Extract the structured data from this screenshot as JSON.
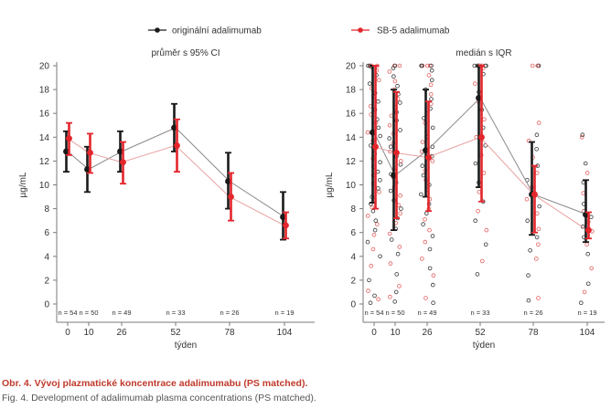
{
  "legend": {
    "position": "top",
    "items": [
      {
        "label": "originální adalimumab",
        "color": "#1a1a1a"
      },
      {
        "label": "SB-5 adalimumab",
        "color": "#e3262c"
      }
    ]
  },
  "caption": {
    "title": "Obr. 4. Vývoj plazmatické koncentrace adalimumabu (PS matched).",
    "subtitle": "Fig. 4. Development of adalimumab plasma concentrations (PS matched)."
  },
  "chart_data": [
    {
      "type": "line",
      "title": "průměr s 95% CI",
      "xlabel": "týden",
      "ylabel": "µg/mL",
      "ylim": [
        0,
        20
      ],
      "yticks": [
        0,
        2,
        4,
        6,
        8,
        10,
        12,
        14,
        16,
        18,
        20
      ],
      "categories": [
        "0",
        "10",
        "26",
        "52",
        "78",
        "104"
      ],
      "x": [
        0,
        10,
        26,
        52,
        78,
        104
      ],
      "n_labels": [
        "n = 54",
        "n = 50",
        "n = 49",
        "n = 33",
        "n = 26",
        "n = 19"
      ],
      "series": [
        {
          "name": "originální adalimumab",
          "color": "#1a1a1a",
          "values": [
            12.8,
            11.3,
            12.8,
            14.8,
            10.3,
            7.3
          ],
          "lower": [
            11.1,
            9.4,
            11.1,
            12.8,
            8.0,
            5.4
          ],
          "upper": [
            14.5,
            13.2,
            14.5,
            16.8,
            12.7,
            9.4
          ]
        },
        {
          "name": "SB-5 adalimumab",
          "color": "#e3262c",
          "values": [
            13.9,
            12.7,
            11.9,
            13.3,
            9.0,
            6.6
          ],
          "lower": [
            12.5,
            11.0,
            10.1,
            11.1,
            7.0,
            5.5
          ],
          "upper": [
            15.2,
            14.3,
            13.6,
            15.5,
            11.0,
            7.7
          ]
        }
      ]
    },
    {
      "type": "scatter",
      "title": "medián s IQR",
      "xlabel": "týden",
      "ylabel": "µg/mL",
      "ylim": [
        0,
        20
      ],
      "yticks": [
        0,
        2,
        4,
        6,
        8,
        10,
        12,
        14,
        16,
        18,
        20
      ],
      "categories": [
        "0",
        "10",
        "26",
        "52",
        "78",
        "104"
      ],
      "x": [
        0,
        10,
        26,
        52,
        78,
        104
      ],
      "n_labels": [
        "n = 54",
        "n = 50",
        "n = 49",
        "n = 33",
        "n = 26",
        "n = 19"
      ],
      "series": [
        {
          "name": "originální adalimumab",
          "color": "#1a1a1a",
          "values": [
            14.4,
            10.8,
            12.9,
            17.3,
            9.2,
            7.5
          ],
          "lower": [
            8.5,
            6.2,
            9.0,
            9.8,
            5.8,
            5.2
          ],
          "upper": [
            20.0,
            18.0,
            18.0,
            20.0,
            13.6,
            10.4
          ]
        },
        {
          "name": "SB-5 adalimumab",
          "color": "#e3262c",
          "values": [
            13.2,
            12.7,
            12.3,
            14.0,
            9.2,
            6.2
          ],
          "lower": [
            8.0,
            7.2,
            7.8,
            8.6,
            6.0,
            5.5
          ],
          "upper": [
            20.0,
            17.8,
            17.0,
            20.0,
            11.6,
            7.7
          ]
        }
      ],
      "points": {
        "0": [
          0.1,
          0.4,
          0.7,
          1.1,
          2.0,
          3.2,
          4.0,
          4.6,
          5.2,
          5.8,
          6.2,
          6.7,
          7.0,
          7.4,
          7.8,
          8.1,
          8.4,
          8.7,
          9.0,
          9.4,
          9.7,
          10.1,
          10.4,
          10.8,
          11.1,
          11.5,
          11.9,
          12.2,
          12.6,
          13.0,
          13.3,
          13.7,
          14.1,
          14.4,
          14.8,
          15.2,
          15.5,
          15.9,
          16.3,
          16.6,
          17.0,
          17.4,
          17.7,
          18.1,
          18.5,
          18.8,
          19.2,
          19.6,
          19.9,
          20.0,
          20.0,
          20.0,
          20.0,
          20.0
        ],
        "10": [
          0.2,
          0.6,
          1.0,
          1.5,
          2.5,
          3.4,
          4.2,
          4.8,
          5.4,
          5.9,
          6.3,
          6.8,
          7.2,
          7.6,
          8.0,
          8.3,
          8.7,
          9.1,
          9.5,
          9.8,
          10.2,
          10.6,
          10.9,
          11.3,
          11.7,
          12.0,
          12.4,
          12.8,
          13.2,
          13.5,
          13.9,
          14.3,
          14.6,
          15.0,
          15.4,
          15.8,
          16.1,
          16.5,
          16.9,
          17.2,
          17.6,
          18.0,
          18.3,
          18.7,
          19.1,
          19.5,
          19.8,
          20.0,
          20.0,
          20.0
        ],
        "26": [
          0.1,
          0.5,
          1.6,
          2.4,
          3.0,
          3.8,
          4.6,
          5.2,
          5.7,
          6.2,
          6.7,
          7.1,
          7.6,
          8.0,
          8.4,
          8.8,
          9.2,
          9.6,
          10.0,
          10.4,
          10.8,
          11.2,
          11.6,
          12.0,
          12.4,
          12.8,
          13.2,
          13.6,
          14.0,
          14.4,
          14.8,
          15.2,
          15.6,
          16.0,
          16.4,
          16.8,
          17.2,
          17.6,
          18.0,
          18.4,
          18.8,
          19.2,
          19.6,
          20.0,
          20.0,
          20.0,
          20.0,
          20.0,
          20.0
        ],
        "52": [
          2.5,
          3.6,
          5.0,
          6.2,
          7.0,
          7.8,
          8.6,
          9.4,
          10.2,
          11.0,
          11.8,
          12.5,
          13.3,
          14.0,
          14.8,
          15.5,
          16.3,
          17.0,
          17.8,
          18.5,
          19.3,
          19.8,
          20.0,
          20.0,
          20.0,
          20.0,
          20.0,
          20.0,
          20.0,
          20.0,
          20.0,
          20.0,
          20.0
        ],
        "78": [
          0.3,
          0.5,
          2.4,
          3.8,
          4.5,
          5.0,
          5.6,
          6.3,
          7.0,
          7.6,
          8.2,
          8.8,
          9.3,
          9.8,
          10.4,
          11.0,
          11.6,
          12.3,
          13.0,
          13.7,
          14.2,
          15.2,
          20.0,
          20.0,
          20.0,
          20.0
        ],
        "104": [
          0.1,
          1.0,
          1.7,
          3.0,
          4.2,
          5.0,
          5.6,
          6.1,
          6.5,
          6.9,
          7.3,
          7.8,
          8.4,
          9.3,
          10.2,
          11.0,
          11.8,
          14.0,
          14.2
        ]
      }
    }
  ]
}
